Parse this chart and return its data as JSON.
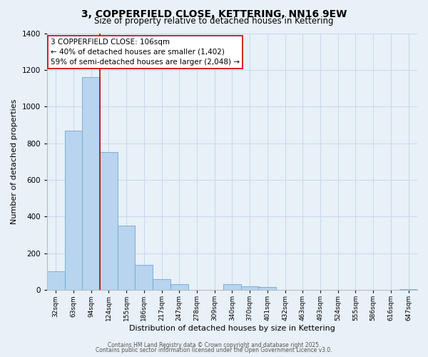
{
  "title": "3, COPPERFIELD CLOSE, KETTERING, NN16 9EW",
  "subtitle": "Size of property relative to detached houses in Kettering",
  "xlabel": "Distribution of detached houses by size in Kettering",
  "ylabel": "Number of detached properties",
  "bar_labels": [
    "32sqm",
    "63sqm",
    "94sqm",
    "124sqm",
    "155sqm",
    "186sqm",
    "217sqm",
    "247sqm",
    "278sqm",
    "309sqm",
    "340sqm",
    "370sqm",
    "401sqm",
    "432sqm",
    "463sqm",
    "493sqm",
    "524sqm",
    "555sqm",
    "586sqm",
    "616sqm",
    "647sqm"
  ],
  "bar_values": [
    100,
    870,
    1160,
    750,
    350,
    135,
    60,
    30,
    0,
    0,
    30,
    20,
    15,
    0,
    0,
    0,
    0,
    0,
    0,
    0,
    5
  ],
  "bar_color": "#b8d4ee",
  "bar_edge_color": "#6aaad4",
  "background_color": "#e8f0f8",
  "grid_color": "#c8d8ea",
  "vline_x": 2.5,
  "vline_color": "#cc0000",
  "ylim": [
    0,
    1400
  ],
  "yticks": [
    0,
    200,
    400,
    600,
    800,
    1000,
    1200,
    1400
  ],
  "annotation_line1": "3 COPPERFIELD CLOSE: 106sqm",
  "annotation_line2": "← 40% of detached houses are smaller (1,402)",
  "annotation_line3": "59% of semi-detached houses are larger (2,048) →",
  "annotation_box_facecolor": "#ffffff",
  "annotation_box_edgecolor": "#cc0000",
  "footer1": "Contains HM Land Registry data © Crown copyright and database right 2025.",
  "footer2": "Contains public sector information licensed under the Open Government Licence v3.0.",
  "title_fontsize": 10,
  "subtitle_fontsize": 8.5,
  "xlabel_fontsize": 8,
  "ylabel_fontsize": 8,
  "xtick_fontsize": 6.5,
  "ytick_fontsize": 7.5,
  "annotation_fontsize": 7.5,
  "footer_fontsize": 5.5
}
